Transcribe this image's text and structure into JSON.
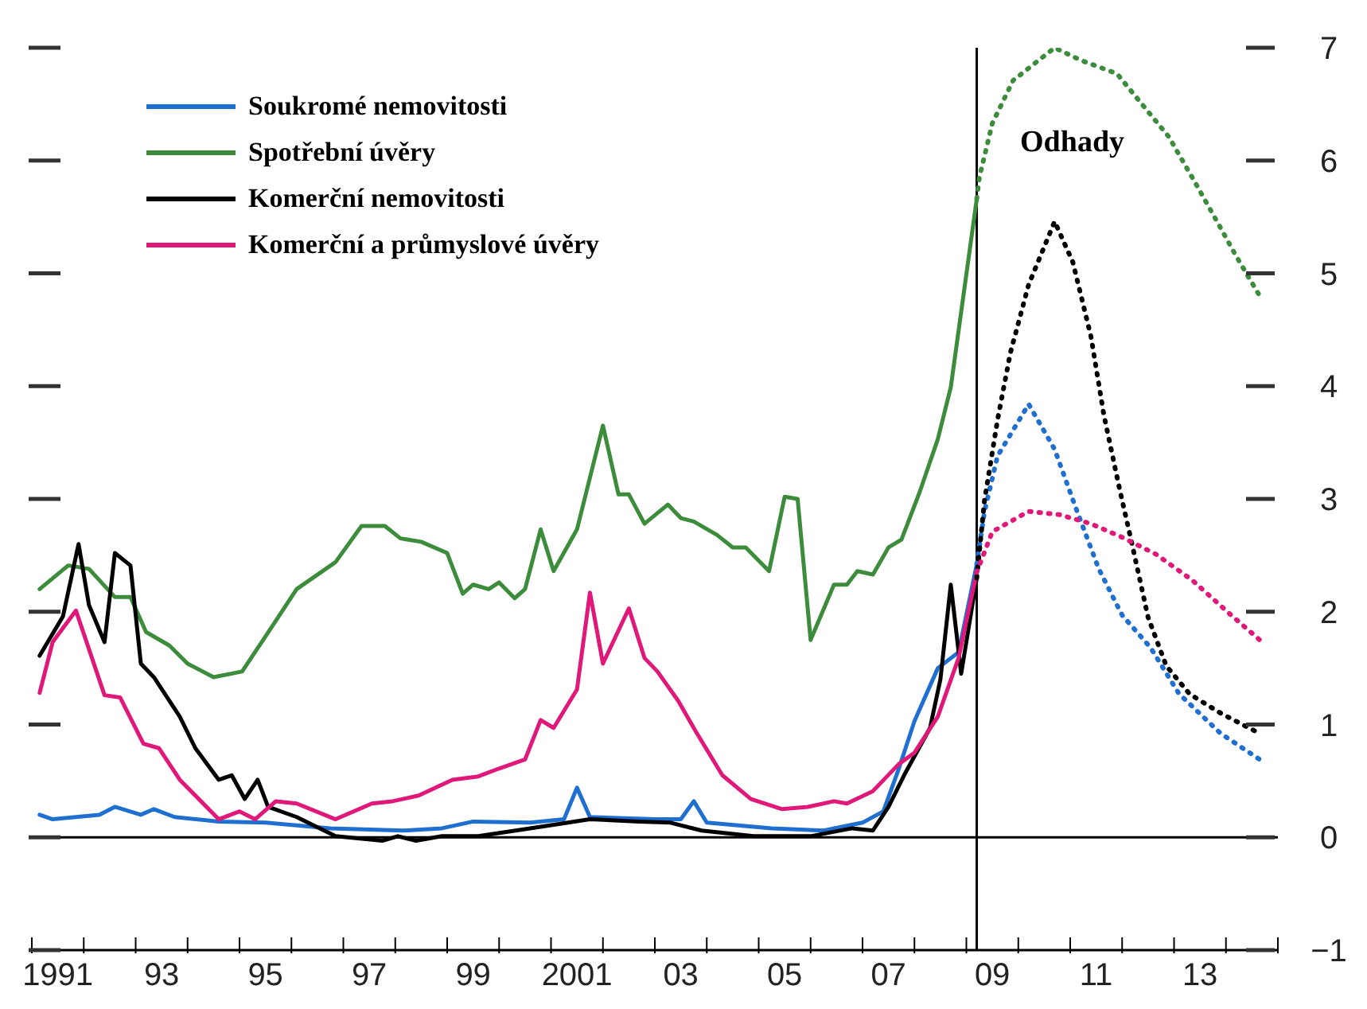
{
  "chart_data": {
    "type": "line",
    "legend": "top left",
    "marker": "none",
    "xlim": [
      1990.5,
      2014.5
    ],
    "xticks": [
      {
        "value": 1990.5,
        "label": null
      },
      1991,
      {
        "value": 1991.5,
        "label": null
      },
      {
        "value": 1992.5,
        "label": null
      },
      {
        "value": 1993,
        "label": "93"
      },
      {
        "value": 1993.5,
        "label": null
      },
      {
        "value": 1994.5,
        "label": null
      },
      {
        "value": 1995,
        "label": "95"
      },
      {
        "value": 1995.5,
        "label": null
      },
      {
        "value": 1996.5,
        "label": null
      },
      {
        "value": 1997,
        "label": "97"
      },
      {
        "value": 1997.5,
        "label": null
      },
      {
        "value": 1998.5,
        "label": null
      },
      {
        "value": 1999,
        "label": "99"
      },
      {
        "value": 1999.5,
        "label": null
      },
      {
        "value": 2000.5,
        "label": null
      },
      2001,
      {
        "value": 2001.5,
        "label": null
      },
      {
        "value": 2002.5,
        "label": null
      },
      {
        "value": 2003,
        "label": "03"
      },
      {
        "value": 2003.5,
        "label": null
      },
      {
        "value": 2004.5,
        "label": null
      },
      {
        "value": 2005,
        "label": "05"
      },
      {
        "value": 2005.5,
        "label": null
      },
      {
        "value": 2006.5,
        "label": null
      },
      {
        "value": 2007,
        "label": "07"
      },
      {
        "value": 2007.5,
        "label": null
      },
      {
        "value": 2008.5,
        "label": null
      },
      {
        "value": 2009,
        "label": "09"
      },
      {
        "value": 2009.5,
        "label": null
      },
      {
        "value": 2010.5,
        "label": null
      },
      {
        "value": 2011,
        "label": "11"
      },
      {
        "value": 2011.5,
        "label": null
      },
      {
        "value": 2012.5,
        "label": null
      },
      {
        "value": 2013,
        "label": "13"
      },
      {
        "value": 2013.5,
        "label": null
      },
      {
        "value": 2014.5,
        "label": null
      }
    ],
    "ylim": [
      -1,
      7
    ],
    "yticks": [
      -1,
      0,
      1,
      2,
      3,
      4,
      5,
      6,
      7
    ],
    "ref_lines": [
      {
        "axis": "x",
        "value": 2008.7,
        "label": "Odhady",
        "color": "#000000"
      },
      {
        "axis": "y",
        "value": 0,
        "color": "#000000"
      }
    ],
    "series": [
      {
        "name": "Soukromé nemovitosti",
        "color": "#1f6fd1",
        "line_style": "solid",
        "x": [
          1990.65,
          1990.9,
          1991.8,
          1992.1,
          1992.6,
          1992.85,
          1993.25,
          1994.1,
          1995.0,
          1996.25,
          1997.65,
          1998.4,
          1999.0,
          2000.1,
          2000.75,
          2001.0,
          2001.25,
          2002.5,
          2003.0,
          2003.25,
          2003.5,
          2004.75,
          2005.75,
          2006.5,
          2006.9,
          2007.2,
          2007.5,
          2007.95,
          2008.35,
          2008.7
        ],
        "values": [
          0.2,
          0.16,
          0.2,
          0.27,
          0.2,
          0.25,
          0.18,
          0.14,
          0.13,
          0.08,
          0.06,
          0.08,
          0.14,
          0.13,
          0.16,
          0.44,
          0.18,
          0.16,
          0.16,
          0.32,
          0.13,
          0.08,
          0.06,
          0.13,
          0.23,
          0.61,
          1.03,
          1.5,
          1.64,
          2.42
        ]
      },
      {
        "name": "Spotřební úvěry",
        "color": "#3c8c3c",
        "line_style": "solid",
        "x": [
          1990.65,
          1991.2,
          1991.6,
          1992.1,
          1992.4,
          1992.7,
          1993.15,
          1993.5,
          1994.0,
          1994.55,
          1995.0,
          1995.6,
          1996.35,
          1996.85,
          1997.3,
          1997.6,
          1998.0,
          1998.5,
          1998.8,
          1999.0,
          1999.3,
          1999.5,
          1999.8,
          2000.0,
          2000.3,
          2000.55,
          2001.0,
          2001.5,
          2001.8,
          2002.0,
          2002.3,
          2002.75,
          2003.0,
          2003.25,
          2003.7,
          2004.0,
          2004.25,
          2004.7,
          2005.0,
          2005.25,
          2005.5,
          2005.95,
          2006.2,
          2006.4,
          2006.7,
          2007.0,
          2007.25,
          2007.6,
          2007.95,
          2008.2,
          2008.7
        ],
        "values": [
          2.2,
          2.41,
          2.38,
          2.13,
          2.13,
          1.82,
          1.7,
          1.54,
          1.42,
          1.47,
          1.78,
          2.2,
          2.44,
          2.76,
          2.76,
          2.65,
          2.62,
          2.52,
          2.16,
          2.24,
          2.2,
          2.26,
          2.12,
          2.2,
          2.73,
          2.36,
          2.73,
          3.65,
          3.04,
          3.04,
          2.78,
          2.95,
          2.83,
          2.8,
          2.68,
          2.57,
          2.57,
          2.36,
          3.02,
          3.0,
          1.75,
          2.24,
          2.24,
          2.36,
          2.33,
          2.57,
          2.64,
          3.06,
          3.53,
          3.99,
          5.66
        ]
      },
      {
        "name": "Komerční nemovitosti",
        "color": "#000000",
        "line_style": "solid",
        "x": [
          1990.65,
          1991.1,
          1991.4,
          1991.6,
          1991.9,
          1992.1,
          1992.4,
          1992.6,
          1992.85,
          1993.35,
          1993.65,
          1994.1,
          1994.35,
          1994.6,
          1994.85,
          1995.05,
          1995.6,
          1996.35,
          1997.25,
          1997.55,
          1997.9,
          1998.4,
          1999.1,
          2000.1,
          2001.25,
          2002.2,
          2002.8,
          2003.4,
          2004.4,
          2005.5,
          2006.3,
          2006.7,
          2007.0,
          2007.3,
          2007.8,
          2008.0,
          2008.2,
          2008.4,
          2008.7
        ],
        "values": [
          1.61,
          1.96,
          2.6,
          2.06,
          1.73,
          2.52,
          2.41,
          1.54,
          1.42,
          1.07,
          0.79,
          0.51,
          0.55,
          0.34,
          0.51,
          0.27,
          0.18,
          0.01,
          -0.03,
          0.01,
          -0.03,
          0.01,
          0.01,
          0.08,
          0.16,
          0.14,
          0.13,
          0.06,
          0.01,
          0.01,
          0.08,
          0.06,
          0.27,
          0.55,
          0.97,
          1.4,
          2.24,
          1.45,
          2.3
        ]
      },
      {
        "name": "Komerční a průmyslové úvěry",
        "color": "#e0187a",
        "line_style": "solid",
        "x": [
          1990.65,
          1990.9,
          1991.35,
          1991.9,
          1992.2,
          1992.65,
          1992.95,
          1993.35,
          1994.1,
          1994.5,
          1994.8,
          1995.2,
          1995.6,
          1996.35,
          1997.05,
          1997.45,
          1997.95,
          1998.6,
          1999.1,
          1999.5,
          2000.0,
          2000.3,
          2000.55,
          2001.0,
          2001.25,
          2001.5,
          2002.0,
          2002.3,
          2002.55,
          2002.95,
          2003.3,
          2003.8,
          2004.35,
          2004.95,
          2005.45,
          2005.95,
          2006.2,
          2006.7,
          2007.2,
          2007.5,
          2007.95,
          2008.35,
          2008.7
        ],
        "values": [
          1.28,
          1.73,
          2.01,
          1.26,
          1.24,
          0.83,
          0.79,
          0.51,
          0.16,
          0.23,
          0.16,
          0.32,
          0.3,
          0.16,
          0.3,
          0.32,
          0.37,
          0.51,
          0.54,
          0.61,
          0.69,
          1.04,
          0.97,
          1.31,
          2.17,
          1.54,
          2.03,
          1.59,
          1.47,
          1.21,
          0.93,
          0.55,
          0.34,
          0.25,
          0.27,
          0.32,
          0.3,
          0.41,
          0.65,
          0.75,
          1.07,
          1.59,
          2.35
        ]
      },
      {
        "color": "#1f6fd1",
        "line_style": "dotted",
        "x": [
          2008.7,
          2008.85,
          2009.1,
          2009.7,
          2010.2,
          2010.6,
          2011.05,
          2011.5,
          2012.05,
          2012.6,
          2013.4,
          2014.15
        ],
        "values": [
          2.42,
          2.89,
          3.38,
          3.84,
          3.44,
          2.93,
          2.38,
          1.97,
          1.68,
          1.27,
          0.92,
          0.69
        ]
      },
      {
        "color": "#3c8c3c",
        "line_style": "dotted",
        "x": [
          2008.7,
          2008.75,
          2009.0,
          2009.4,
          2010.2,
          2010.7,
          2011.4,
          2011.9,
          2012.4,
          2012.9,
          2013.4,
          2013.7,
          2014.15
        ],
        "values": [
          5.66,
          5.85,
          6.33,
          6.71,
          7.0,
          6.89,
          6.77,
          6.49,
          6.21,
          5.81,
          5.4,
          5.15,
          4.8
        ]
      },
      {
        "color": "#000000",
        "line_style": "dotted",
        "x": [
          2008.7,
          2008.85,
          2009.1,
          2009.35,
          2009.7,
          2010.2,
          2010.55,
          2010.9,
          2011.15,
          2011.45,
          2011.7,
          2012.0,
          2012.35,
          2012.8,
          2013.4,
          2014.15
        ],
        "values": [
          2.3,
          2.99,
          3.7,
          4.3,
          4.9,
          5.46,
          5.1,
          4.44,
          3.74,
          3.09,
          2.58,
          1.95,
          1.52,
          1.27,
          1.1,
          0.92
        ]
      },
      {
        "color": "#e0187a",
        "line_style": "dotted",
        "x": [
          2008.7,
          2009.0,
          2009.7,
          2010.3,
          2010.9,
          2011.5,
          2012.15,
          2012.85,
          2013.6,
          2014.15
        ],
        "values": [
          2.35,
          2.71,
          2.89,
          2.86,
          2.78,
          2.66,
          2.51,
          2.28,
          1.97,
          1.75
        ]
      }
    ]
  }
}
